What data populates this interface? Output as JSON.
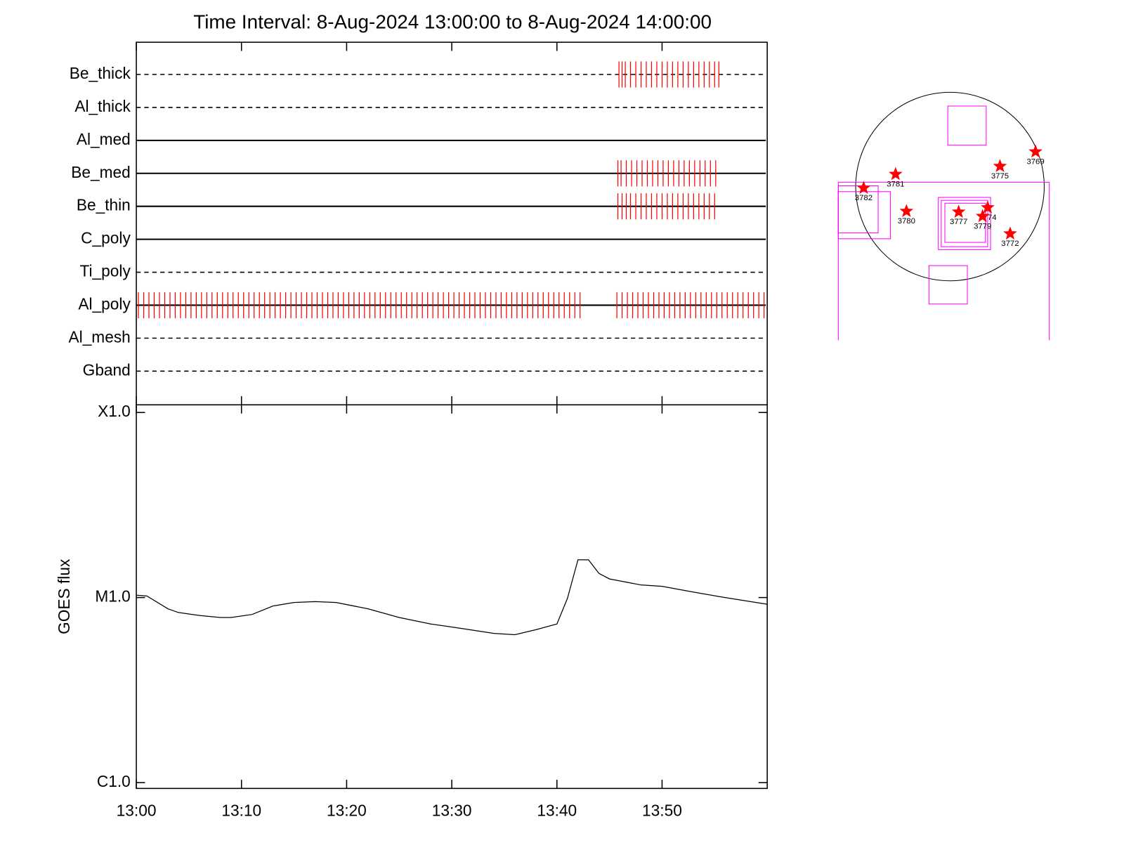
{
  "chart_data": [
    {
      "type": "timeline",
      "title": "Time Interval:  8-Aug-2024 13:00:00 to  8-Aug-2024 14:00:00",
      "categories": [
        "Be_thick",
        "Al_thick",
        "Al_med",
        "Be_med",
        "Be_thin",
        "C_poly",
        "Ti_poly",
        "Al_poly",
        "Al_mesh",
        "Gband"
      ],
      "line_styles": [
        "dashed",
        "dashed",
        "solid",
        "solid",
        "solid",
        "solid",
        "dashed",
        "solid",
        "dashed",
        "dashed"
      ],
      "event_color": "#ff0000",
      "events": [
        [
          45.9,
          46.2,
          46.5,
          47.0,
          47.5,
          48.0,
          48.5,
          49.0,
          49.5,
          50.0,
          50.5,
          51.0,
          51.5,
          52.0,
          52.5,
          53.0,
          53.5,
          54.0,
          54.5,
          55.0,
          55.4
        ],
        [],
        [],
        [
          45.8,
          46.1,
          46.6,
          47.1,
          47.6,
          48.1,
          48.6,
          49.1,
          49.6,
          50.1,
          50.6,
          51.1,
          51.6,
          52.1,
          52.6,
          53.1,
          53.6,
          54.1,
          54.6,
          55.1
        ],
        [
          45.8,
          46.2,
          46.6,
          47.0,
          47.5,
          48.0,
          48.5,
          49.0,
          49.5,
          50.0,
          50.5,
          51.0,
          51.5,
          52.0,
          52.5,
          53.0,
          53.5,
          54.0,
          54.5,
          55.0
        ],
        [],
        [],
        [
          0.2,
          0.7,
          1.2,
          1.7,
          2.2,
          2.7,
          3.2,
          3.7,
          4.2,
          4.7,
          5.2,
          5.7,
          6.2,
          6.7,
          7.2,
          7.7,
          8.2,
          8.7,
          9.2,
          9.7,
          10.2,
          10.7,
          11.2,
          11.7,
          12.2,
          12.7,
          13.2,
          13.7,
          14.2,
          14.7,
          15.2,
          15.7,
          16.2,
          16.7,
          17.2,
          17.7,
          18.2,
          18.7,
          19.2,
          19.7,
          20.2,
          20.7,
          21.2,
          21.7,
          22.2,
          22.7,
          23.2,
          23.7,
          24.2,
          24.7,
          25.2,
          25.7,
          26.2,
          26.7,
          27.2,
          27.7,
          28.2,
          28.7,
          29.2,
          29.7,
          30.2,
          30.7,
          31.2,
          31.7,
          32.2,
          32.7,
          33.2,
          33.7,
          34.2,
          34.7,
          35.2,
          35.7,
          36.2,
          36.7,
          37.2,
          37.7,
          38.2,
          38.7,
          39.2,
          39.7,
          40.2,
          40.7,
          41.2,
          41.7,
          42.2,
          45.7,
          46.2,
          46.7,
          47.2,
          47.7,
          48.2,
          48.7,
          49.2,
          49.7,
          50.2,
          50.7,
          51.2,
          51.7,
          52.2,
          52.7,
          53.2,
          53.7,
          54.2,
          54.7,
          55.2,
          55.7,
          56.2,
          56.7,
          57.2,
          57.7,
          58.2,
          58.7,
          59.2,
          59.7
        ],
        [],
        []
      ],
      "xlim": [
        0,
        60
      ],
      "xticks": [
        0,
        10,
        20,
        30,
        40,
        50
      ]
    },
    {
      "type": "line",
      "y_label": "GOES flux",
      "log_y": true,
      "color": "#000000",
      "x": [
        0,
        1,
        3,
        4,
        6,
        8,
        9,
        11,
        13,
        15,
        17,
        19,
        22,
        25,
        28,
        31,
        34,
        36,
        38,
        40,
        41,
        42,
        43,
        44,
        45,
        48,
        50,
        53,
        56,
        60
      ],
      "values": [
        1.03e-05,
        1.02e-05,
        8.7e-06,
        8.3e-06,
        8e-06,
        7.8e-06,
        7.8e-06,
        8.1e-06,
        9e-06,
        9.4e-06,
        9.5e-06,
        9.4e-06,
        8.7e-06,
        7.8e-06,
        7.2e-06,
        6.8e-06,
        6.4e-06,
        6.3e-06,
        6.7e-06,
        7.2e-06,
        9.9e-06,
        1.6e-05,
        1.6e-05,
        1.35e-05,
        1.26e-05,
        1.17e-05,
        1.15e-05,
        1.07e-05,
        1e-05,
        9.2e-06
      ],
      "xlim": [
        0,
        60
      ],
      "ylim": [
        9.3e-07,
        0.00011
      ],
      "xticks": [
        {
          "value": 0,
          "label": "13:00"
        },
        {
          "value": 10,
          "label": "13:10"
        },
        {
          "value": 20,
          "label": "13:20"
        },
        {
          "value": 30,
          "label": "13:30"
        },
        {
          "value": 40,
          "label": "13:40"
        },
        {
          "value": 50,
          "label": "13:50"
        }
      ],
      "yticks": [
        {
          "value": 1e-06,
          "label": "C1.0"
        },
        {
          "value": 1e-05,
          "label": "M1.0"
        },
        {
          "value": 0.0001,
          "label": "X1.0"
        }
      ]
    }
  ],
  "solar_map": {
    "regions": [
      "3769",
      "3775",
      "3781",
      "3782",
      "3780",
      "3777",
      "3774",
      "3779",
      "3772"
    ],
    "marker_color": "#ff0000"
  }
}
